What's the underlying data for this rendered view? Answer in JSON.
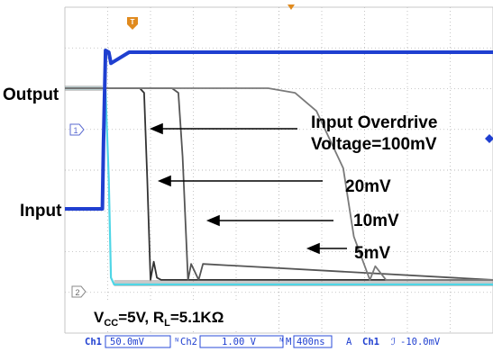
{
  "chart_data": {
    "type": "line",
    "title": "",
    "xlabel": "",
    "ylabel": "",
    "grid": true,
    "time_unit": "ns",
    "x_range": [
      0,
      4000
    ],
    "series": [
      {
        "name": "Input",
        "color": "#1f3fd0",
        "x": [
          0,
          350,
          360,
          380,
          410,
          430,
          600,
          1000,
          2000,
          3000,
          4000
        ],
        "y": [
          -3.5,
          -3.5,
          0,
          5.2,
          5.0,
          4.4,
          5.0,
          5.0,
          5.0,
          5.0,
          5.0
        ]
      },
      {
        "name": "100mV",
        "color": "#4fd6e6",
        "x": [
          0,
          350,
          380,
          410,
          430,
          460,
          4000
        ],
        "y": [
          5.0,
          5.0,
          4.9,
          1.0,
          -3.3,
          -3.6,
          -3.6
        ]
      },
      {
        "name": "20mV",
        "color": "#333333",
        "x": [
          0,
          700,
          740,
          770,
          800,
          830,
          860,
          900,
          4000
        ],
        "y": [
          5.0,
          5.0,
          4.8,
          1.0,
          -3.4,
          -2.6,
          -3.3,
          -3.4,
          -3.4
        ]
      },
      {
        "name": "10mV",
        "color": "#555555",
        "x": [
          0,
          1000,
          1060,
          1100,
          1150,
          1180,
          1250,
          1290,
          4000
        ],
        "y": [
          5.0,
          5.0,
          4.8,
          2.0,
          -3.4,
          -2.7,
          -3.4,
          -2.7,
          -3.4
        ]
      },
      {
        "name": "5mV",
        "color": "#7a7a7a",
        "x": [
          0,
          1900,
          2150,
          2350,
          2600,
          2700,
          2850,
          2900,
          3000,
          4000
        ],
        "y": [
          5.0,
          5.0,
          4.8,
          4.0,
          1.5,
          -1.5,
          -3.4,
          -2.8,
          -3.4,
          -3.4
        ]
      }
    ],
    "annotations": {
      "output_label": "Output",
      "input_label": "Input",
      "overdrive_line1": "Input Overdrive",
      "overdrive_line2": "Voltage=100mV",
      "arrow_20": "20mV",
      "arrow_10": "10mV",
      "arrow_5": "5mV",
      "vcc": "V",
      "vcc_sub": "CC",
      "vcc_val": "=5V, R",
      "rl_sub": "L",
      "rl_val": "=5.1KΩ"
    },
    "markers": {
      "trigger": "T",
      "ch1_marker": "1",
      "ch2_marker": "2"
    }
  },
  "status_bar": {
    "ch1_label": "Ch1",
    "ch1_scale": "50.0mV",
    "ch2_label": "Ch2",
    "ch2_scale": "1.00 V",
    "time_label": "M",
    "time_scale": "400ns",
    "trig_mode": "A",
    "trig_ch": "Ch1",
    "trig_level": "-10.0mV"
  },
  "colors": {
    "input": "#1f3fd0",
    "fast_output": "#4fd6e6",
    "grid": "#b8b8b8",
    "status_box": "#2a4bd8",
    "trigger": "#e08a1e"
  }
}
